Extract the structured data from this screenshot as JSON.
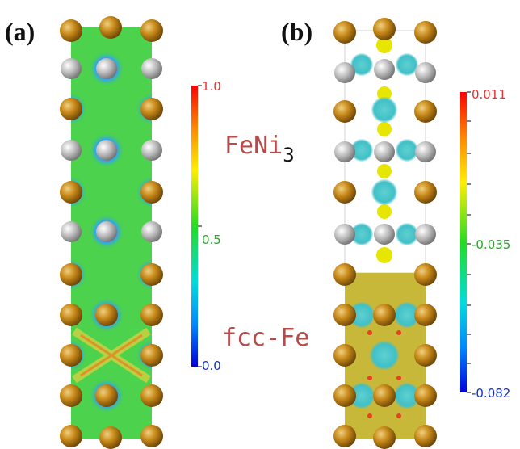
{
  "panels": [
    {
      "label": "(a)"
    },
    {
      "label": "(b)"
    }
  ],
  "colorbar_a": {
    "max": "1.0",
    "mid": "0.5",
    "min": "0.0",
    "max_color": "#e83030",
    "mid_color": "#22aa22",
    "min_color": "#1030c0"
  },
  "colorbar_b": {
    "max": "0.011",
    "mid": "-0.035",
    "min": "-0.082",
    "max_color": "#e83030",
    "mid_color": "#22aa22",
    "min_color": "#1030c0"
  },
  "regions": {
    "upper_base": "FeNi",
    "upper_sub": "3",
    "lower": "fcc-Fe"
  },
  "colors": {
    "fe_atom": "#b8860b",
    "ni_atom": "#a8a8a8",
    "elf_background": "#4cd24c",
    "yellow_iso": "#e6e600",
    "cyan_iso": "#40c8c8",
    "region_text": "#b84a4a"
  }
}
